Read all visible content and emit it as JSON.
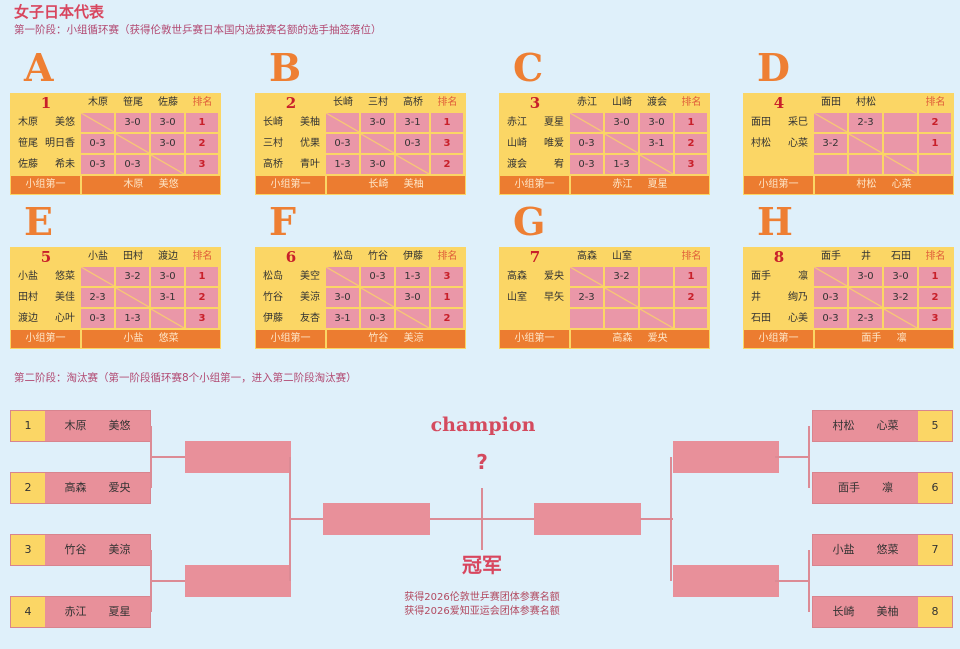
{
  "title": "女子日本代表",
  "stage1": "第一阶段：小组循环赛（获得伦敦世乒赛日本国内选拔赛名额的选手抽签落位）",
  "stage2": "第二阶段：淘汰赛（第一阶段循环赛8个小组第一，进入第二阶段淘汰赛）",
  "rank_label": "排名",
  "winner_label": "小组第一",
  "colors": {
    "background": "#dff0fa",
    "pink": "#e8909a",
    "yellow": "#fbd665",
    "orange": "#ec7c30",
    "title": "#d8465e"
  },
  "groups": [
    {
      "letter": "A",
      "number": "1",
      "cols": [
        "木原",
        "笹尾",
        "佐藤"
      ],
      "rows": [
        {
          "s": "木原",
          "g": "美悠",
          "scores": [
            "",
            "3-0",
            "3-0"
          ],
          "rank": "1"
        },
        {
          "s": "笹尾",
          "g": "明日香",
          "scores": [
            "0-3",
            "",
            "3-0"
          ],
          "rank": "2"
        },
        {
          "s": "佐藤",
          "g": "希未",
          "scores": [
            "0-3",
            "0-3",
            ""
          ],
          "rank": "3"
        }
      ],
      "winner": "木原 美悠"
    },
    {
      "letter": "B",
      "number": "2",
      "cols": [
        "长崎",
        "三村",
        "高桥"
      ],
      "rows": [
        {
          "s": "长崎",
          "g": "美柚",
          "scores": [
            "",
            "3-0",
            "3-1"
          ],
          "rank": "1"
        },
        {
          "s": "三村",
          "g": "优果",
          "scores": [
            "0-3",
            "",
            "0-3"
          ],
          "rank": "3"
        },
        {
          "s": "高桥",
          "g": "青叶",
          "scores": [
            "1-3",
            "3-0",
            ""
          ],
          "rank": "2"
        }
      ],
      "winner": "长崎 美柚"
    },
    {
      "letter": "C",
      "number": "3",
      "cols": [
        "赤江",
        "山崎",
        "渡会"
      ],
      "rows": [
        {
          "s": "赤江",
          "g": "夏星",
          "scores": [
            "",
            "3-0",
            "3-0"
          ],
          "rank": "1"
        },
        {
          "s": "山崎",
          "g": "唯爱",
          "scores": [
            "0-3",
            "",
            "3-1"
          ],
          "rank": "2"
        },
        {
          "s": "渡会",
          "g": "宥",
          "scores": [
            "0-3",
            "1-3",
            ""
          ],
          "rank": "3"
        }
      ],
      "winner": "赤江 夏星"
    },
    {
      "letter": "D",
      "number": "4",
      "cols": [
        "面田",
        "村松",
        ""
      ],
      "rows": [
        {
          "s": "面田",
          "g": "采巳",
          "scores": [
            "",
            "2-3",
            ""
          ],
          "rank": "2"
        },
        {
          "s": "村松",
          "g": "心菜",
          "scores": [
            "3-2",
            "",
            ""
          ],
          "rank": "1"
        },
        {
          "s": "",
          "g": "",
          "scores": [
            "",
            "",
            ""
          ],
          "rank": ""
        }
      ],
      "winner": "村松 心菜"
    },
    {
      "letter": "E",
      "number": "5",
      "cols": [
        "小盐",
        "田村",
        "渡边"
      ],
      "rows": [
        {
          "s": "小盐",
          "g": "悠菜",
          "scores": [
            "",
            "3-2",
            "3-0"
          ],
          "rank": "1"
        },
        {
          "s": "田村",
          "g": "美佳",
          "scores": [
            "2-3",
            "",
            "3-1"
          ],
          "rank": "2"
        },
        {
          "s": "渡边",
          "g": "心叶",
          "scores": [
            "0-3",
            "1-3",
            ""
          ],
          "rank": "3"
        }
      ],
      "winner": "小盐 悠菜"
    },
    {
      "letter": "F",
      "number": "6",
      "cols": [
        "松岛",
        "竹谷",
        "伊藤"
      ],
      "rows": [
        {
          "s": "松岛",
          "g": "美空",
          "scores": [
            "",
            "0-3",
            "1-3"
          ],
          "rank": "3"
        },
        {
          "s": "竹谷",
          "g": "美涼",
          "scores": [
            "3-0",
            "",
            "3-0"
          ],
          "rank": "1"
        },
        {
          "s": "伊藤",
          "g": "友杏",
          "scores": [
            "3-1",
            "0-3",
            ""
          ],
          "rank": "2"
        }
      ],
      "winner": "竹谷 美涼"
    },
    {
      "letter": "G",
      "number": "7",
      "cols": [
        "高森",
        "山室",
        ""
      ],
      "rows": [
        {
          "s": "高森",
          "g": "爱央",
          "scores": [
            "",
            "3-2",
            ""
          ],
          "rank": "1"
        },
        {
          "s": "山室",
          "g": "早矢",
          "scores": [
            "2-3",
            "",
            ""
          ],
          "rank": "2"
        },
        {
          "s": "",
          "g": "",
          "scores": [
            "",
            "",
            ""
          ],
          "rank": ""
        }
      ],
      "winner": "高森 爱央"
    },
    {
      "letter": "H",
      "number": "8",
      "cols": [
        "面手",
        "井",
        "石田"
      ],
      "rows": [
        {
          "s": "面手",
          "g": "凛",
          "scores": [
            "",
            "3-0",
            "3-0"
          ],
          "rank": "1"
        },
        {
          "s": "井",
          "g": "绚乃",
          "scores": [
            "0-3",
            "",
            "3-2"
          ],
          "rank": "2"
        },
        {
          "s": "石田",
          "g": "心美",
          "scores": [
            "0-3",
            "2-3",
            ""
          ],
          "rank": "3"
        }
      ],
      "winner": "面手 凛"
    }
  ],
  "bracket": {
    "left": [
      {
        "seed": "1",
        "s": "木原",
        "g": "美悠"
      },
      {
        "seed": "2",
        "s": "高森",
        "g": "爱央"
      },
      {
        "seed": "3",
        "s": "竹谷",
        "g": "美涼"
      },
      {
        "seed": "4",
        "s": "赤江",
        "g": "夏星"
      }
    ],
    "right": [
      {
        "seed": "5",
        "s": "村松",
        "g": "心菜"
      },
      {
        "seed": "6",
        "s": "面手",
        "g": "凛"
      },
      {
        "seed": "7",
        "s": "小盐",
        "g": "悠菜"
      },
      {
        "seed": "8",
        "s": "长崎",
        "g": "美柚"
      }
    ],
    "champion_en": "champion",
    "champion_mark": "?",
    "champion_cn": "冠军",
    "notes": [
      "获得2026伦敦世乒赛团体参赛名额",
      "获得2026爱知亚运会团体参赛名额"
    ]
  }
}
